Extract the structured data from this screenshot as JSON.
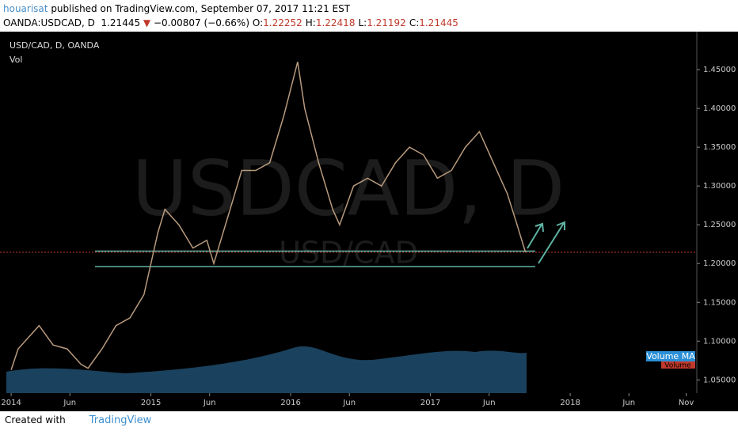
{
  "header": {
    "author": "houarisat",
    "published": "published on TradingView.com, September 07, 2017 11:21 EST",
    "symbol": "OANDA:USDCAD, D",
    "last": "1.21445",
    "change": "−0.00807 (−0.66%)",
    "ohlc": [
      {
        "label": "O:",
        "value": "1.22252"
      },
      {
        "label": "H:",
        "value": "1.22418"
      },
      {
        "label": "L:",
        "value": "1.21192"
      },
      {
        "label": "C:",
        "value": "1.21445"
      }
    ]
  },
  "chart_data": {
    "type": "line",
    "legend": "USD/CAD, D, OANDA",
    "volume_label": "Vol",
    "watermark": "USDCAD, D",
    "watermark_sub": "USD/CAD",
    "volume_ma_label": "Volume MA",
    "volume_tag": "Volume",
    "x": [
      2014.0,
      2014.05,
      2014.1,
      2014.2,
      2014.3,
      2014.4,
      2014.5,
      2014.55,
      2014.65,
      2014.75,
      2014.85,
      2014.95,
      2015.05,
      2015.1,
      2015.2,
      2015.3,
      2015.4,
      2015.45,
      2015.55,
      2015.65,
      2015.75,
      2015.85,
      2015.95,
      2016.05,
      2016.1,
      2016.2,
      2016.3,
      2016.35,
      2016.45,
      2016.55,
      2016.65,
      2016.75,
      2016.85,
      2016.95,
      2017.05,
      2017.15,
      2017.25,
      2017.35,
      2017.45,
      2017.55,
      2017.62,
      2017.68
    ],
    "series": [
      {
        "name": "USD/CAD",
        "color": "#b89a7e",
        "values": [
          1.063,
          1.09,
          1.1,
          1.12,
          1.095,
          1.09,
          1.07,
          1.065,
          1.09,
          1.12,
          1.13,
          1.16,
          1.24,
          1.27,
          1.25,
          1.22,
          1.23,
          1.2,
          1.26,
          1.32,
          1.32,
          1.33,
          1.39,
          1.46,
          1.4,
          1.33,
          1.27,
          1.25,
          1.3,
          1.31,
          1.3,
          1.33,
          1.35,
          1.34,
          1.31,
          1.32,
          1.35,
          1.37,
          1.33,
          1.29,
          1.25,
          1.2145
        ]
      }
    ],
    "support": [
      1.216,
      1.196
    ],
    "last_price": 1.21445,
    "last_color": "#c0392b",
    "support_color": "#5fb3a3",
    "xlim": [
      2013.92,
      2018.906
    ],
    "xticks": [
      {
        "value": 2014,
        "label": "2014"
      },
      {
        "value": 2014.42,
        "label": "Jun"
      },
      {
        "value": 2015,
        "label": "2015"
      },
      {
        "value": 2015.42,
        "label": "Jun"
      },
      {
        "value": 2016,
        "label": "2016"
      },
      {
        "value": 2016.42,
        "label": "Jun"
      },
      {
        "value": 2017,
        "label": "2017"
      },
      {
        "value": 2017.42,
        "label": "Jun"
      },
      {
        "value": 2018,
        "label": "2018"
      },
      {
        "value": 2018.42,
        "label": "Jun"
      },
      {
        "value": 2018.83,
        "label": "Nov"
      }
    ],
    "ylim": [
      1.033,
      1.499
    ],
    "yticks": [
      {
        "value": 1.05,
        "label": "1.05000"
      },
      {
        "value": 1.1,
        "label": "1.10000"
      },
      {
        "value": 1.15,
        "label": "1.15000"
      },
      {
        "value": 1.2,
        "label": "1.20000"
      },
      {
        "value": 1.25,
        "label": "1.25000"
      },
      {
        "value": 1.3,
        "label": "1.30000"
      },
      {
        "value": 1.35,
        "label": "1.35000"
      },
      {
        "value": 1.4,
        "label": "1.40000"
      },
      {
        "value": 1.45,
        "label": "1.45000"
      }
    ]
  },
  "footer": {
    "created": "Created with",
    "brand": "TradingView"
  }
}
